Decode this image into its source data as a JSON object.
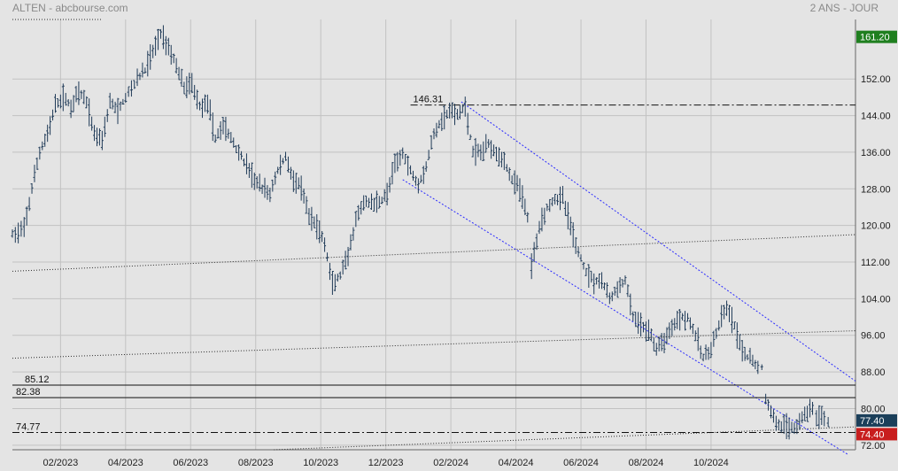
{
  "header": {
    "title": "ALTEN - abcbourse.com",
    "period": "2 ANS - JOUR"
  },
  "colors": {
    "background": "#e4e4e4",
    "candle": "#1f3a57",
    "grid": "#c2c2c2",
    "channel": "#2b2bff",
    "tag_high": "#1f7f1f",
    "tag_current": "#1b3f5a",
    "tag_low": "#c81e1e"
  },
  "chart_data": {
    "type": "candlestick",
    "ylim": [
      71,
      165
    ],
    "y_ticks": [
      "72.00",
      "80.00",
      "88.00",
      "96.00",
      "104.00",
      "112.00",
      "120.00",
      "128.00",
      "136.00",
      "144.00",
      "152.00"
    ],
    "x_ticks": [
      "02/2023",
      "04/2023",
      "06/2023",
      "08/2023",
      "10/2023",
      "12/2023",
      "02/2024",
      "04/2024",
      "06/2024",
      "08/2024",
      "10/2024"
    ],
    "series": [
      {
        "values": [
          [
            2022.96,
            118
          ],
          [
            2022.99,
            119
          ],
          [
            2023.01,
            128
          ],
          [
            2023.03,
            136
          ],
          [
            2023.05,
            140
          ],
          [
            2023.07,
            146
          ],
          [
            2023.09,
            148
          ],
          [
            2023.11,
            146
          ],
          [
            2023.13,
            149
          ],
          [
            2023.15,
            147
          ],
          [
            2023.17,
            140
          ],
          [
            2023.19,
            139
          ],
          [
            2023.21,
            147
          ],
          [
            2023.23,
            145
          ],
          [
            2023.25,
            148
          ],
          [
            2023.28,
            152
          ],
          [
            2023.3,
            154
          ],
          [
            2023.32,
            158
          ],
          [
            2023.34,
            162
          ],
          [
            2023.36,
            159
          ],
          [
            2023.38,
            155
          ],
          [
            2023.4,
            150
          ],
          [
            2023.42,
            151
          ],
          [
            2023.44,
            146
          ],
          [
            2023.46,
            147
          ],
          [
            2023.48,
            139
          ],
          [
            2023.5,
            142
          ],
          [
            2023.52,
            139
          ],
          [
            2023.54,
            136
          ],
          [
            2023.56,
            133
          ],
          [
            2023.58,
            130
          ],
          [
            2023.6,
            128
          ],
          [
            2023.62,
            127
          ],
          [
            2023.64,
            132
          ],
          [
            2023.66,
            135
          ],
          [
            2023.68,
            130
          ],
          [
            2023.7,
            128
          ],
          [
            2023.72,
            122
          ],
          [
            2023.74,
            120
          ],
          [
            2023.76,
            116
          ],
          [
            2023.78,
            107
          ],
          [
            2023.8,
            109
          ],
          [
            2023.82,
            113
          ],
          [
            2023.84,
            121
          ],
          [
            2023.86,
            125
          ],
          [
            2023.88,
            125
          ],
          [
            2023.9,
            125
          ],
          [
            2023.92,
            127
          ],
          [
            2023.94,
            133
          ],
          [
            2023.96,
            136
          ],
          [
            2023.98,
            132
          ],
          [
            2024.0,
            129
          ],
          [
            2024.02,
            133
          ],
          [
            2024.04,
            140
          ],
          [
            2024.06,
            143
          ],
          [
            2024.08,
            145
          ],
          [
            2024.1,
            144
          ],
          [
            2024.12,
            146
          ],
          [
            2024.14,
            136
          ],
          [
            2024.16,
            136
          ],
          [
            2024.18,
            138
          ],
          [
            2024.2,
            136
          ],
          [
            2024.22,
            134
          ],
          [
            2024.24,
            130
          ],
          [
            2024.26,
            128
          ],
          [
            2024.28,
            122
          ],
          [
            2024.29,
            111
          ],
          [
            2024.31,
            120
          ],
          [
            2024.33,
            124
          ],
          [
            2024.35,
            126
          ],
          [
            2024.37,
            126
          ],
          [
            2024.39,
            120
          ],
          [
            2024.41,
            114
          ],
          [
            2024.43,
            110
          ],
          [
            2024.45,
            108
          ],
          [
            2024.47,
            108
          ],
          [
            2024.49,
            104
          ],
          [
            2024.51,
            106
          ],
          [
            2024.53,
            108
          ],
          [
            2024.55,
            100
          ],
          [
            2024.57,
            98
          ],
          [
            2024.59,
            97
          ],
          [
            2024.61,
            93
          ],
          [
            2024.63,
            95
          ],
          [
            2024.65,
            98
          ],
          [
            2024.67,
            100
          ],
          [
            2024.69,
            100
          ],
          [
            2024.71,
            96
          ],
          [
            2024.73,
            91
          ],
          [
            2024.75,
            93
          ],
          [
            2024.77,
            98
          ],
          [
            2024.79,
            102
          ],
          [
            2024.81,
            98
          ],
          [
            2024.83,
            92
          ],
          [
            2024.85,
            91
          ],
          [
            2024.87,
            89
          ],
          [
            2024.88,
            89
          ],
          [
            2024.89,
            82
          ],
          [
            2024.91,
            78
          ],
          [
            2024.93,
            76
          ],
          [
            2024.95,
            76
          ],
          [
            2024.97,
            76
          ],
          [
            2024.99,
            79
          ],
          [
            2025.01,
            80
          ],
          [
            2025.02,
            78
          ],
          [
            2025.04,
            78
          ],
          [
            2025.05,
            77.4
          ]
        ]
      }
    ],
    "levels": [
      {
        "label": "146.31",
        "value": 146.31,
        "style": "dash-dot"
      },
      {
        "label": "85.12",
        "value": 85.12,
        "style": "solid"
      },
      {
        "label": "82.38",
        "value": 82.38,
        "style": "solid"
      },
      {
        "label": "74.77",
        "value": 74.77,
        "style": "dash-dot"
      }
    ],
    "price_tags": [
      {
        "label": "161.20",
        "value": 161.2,
        "kind": "high"
      },
      {
        "label": "77.40",
        "value": 77.4,
        "kind": "current"
      },
      {
        "label": "74.40",
        "value": 74.4,
        "kind": "low"
      }
    ],
    "channel": {
      "upper": [
        [
          2024.11,
          147
        ],
        [
          2025.12,
          86
        ]
      ],
      "lower": [
        [
          2023.96,
          130
        ],
        [
          2025.1,
          70
        ]
      ]
    },
    "trendlines": [
      [
        [
          2022.96,
          91
        ],
        [
          2025.12,
          97
        ]
      ],
      [
        [
          2022.96,
          110
        ],
        [
          2025.12,
          118
        ]
      ],
      [
        [
          2023.63,
          71
        ],
        [
          2025.12,
          76
        ]
      ],
      [
        [
          2022.96,
          165
        ],
        [
          2023.19,
          165
        ]
      ]
    ]
  }
}
